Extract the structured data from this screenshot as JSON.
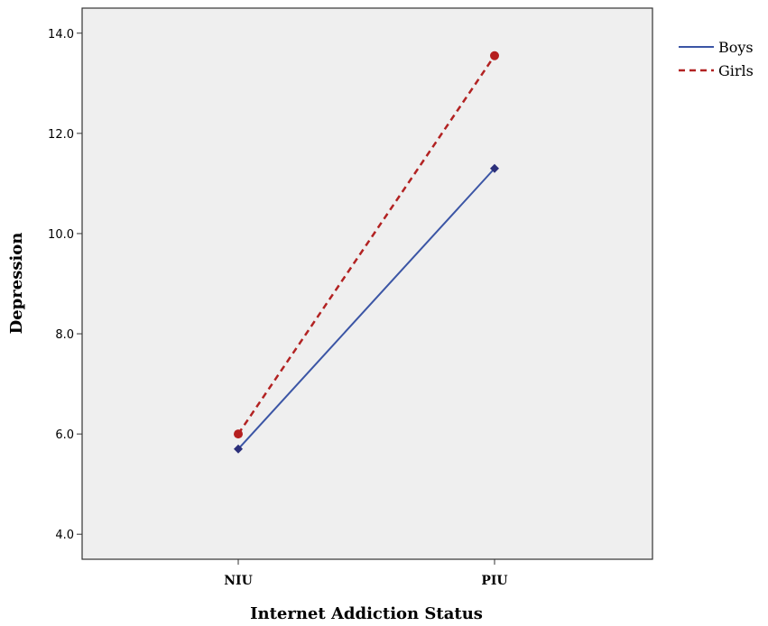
{
  "chart_data": {
    "type": "line",
    "title": "",
    "xlabel": "Internet Addiction Status",
    "ylabel": "Depression",
    "categories": [
      "NIU",
      "PIU"
    ],
    "ylim": [
      3.5,
      14.5
    ],
    "yticks": [
      "4.0",
      "6.0",
      "8.0",
      "10.0",
      "12.0",
      "14.0"
    ],
    "grid": false,
    "legend_position": "top-right outside",
    "series": [
      {
        "name": "Boys",
        "values": [
          5.7,
          11.3
        ],
        "color": "#3b55a5",
        "line_style": "solid",
        "marker": "diamond",
        "marker_color": "#2b2f7a"
      },
      {
        "name": "Girls",
        "values": [
          6.0,
          13.55
        ],
        "color": "#b22222",
        "line_style": "dashed",
        "marker": "circle",
        "marker_color": "#b51f1f"
      }
    ],
    "plot_background": "#efefef"
  }
}
